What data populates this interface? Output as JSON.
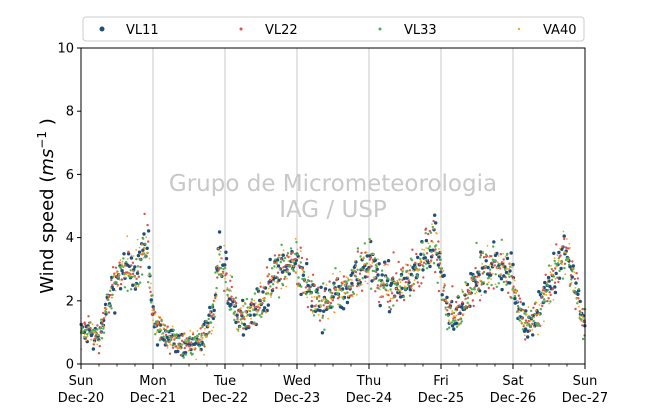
{
  "chart_data": {
    "type": "scatter",
    "title": "",
    "ylabel_main": "Wind speed (",
    "ylabel_unit": "ms",
    "ylabel_exp": "−1",
    "ylabel_close": " )",
    "ylim": [
      0,
      10
    ],
    "yticks": [
      "0",
      "2",
      "4",
      "6",
      "8",
      "10"
    ],
    "xlim": [
      "2020-12-20",
      "2020-12-27"
    ],
    "xticks": [
      {
        "day": "Sun",
        "date": "Dec-20"
      },
      {
        "day": "Mon",
        "date": "Dec-21"
      },
      {
        "day": "Tue",
        "date": "Dec-22"
      },
      {
        "day": "Wed",
        "date": "Dec-23"
      },
      {
        "day": "Thu",
        "date": "Dec-24"
      },
      {
        "day": "Fri",
        "date": "Dec-25"
      },
      {
        "day": "Sat",
        "date": "Dec-26"
      },
      {
        "day": "Sun",
        "date": "Dec-27"
      }
    ],
    "grid": "vertical",
    "legend_position": "top",
    "watermark_line1": "Grupo de Micrometeorologia",
    "watermark_line2": "IAG / USP",
    "profile_hours": [
      0,
      6,
      10,
      14,
      18,
      22,
      24,
      28,
      34,
      40,
      44,
      46,
      48,
      52,
      56,
      62,
      66,
      72,
      76,
      80,
      84,
      90,
      96,
      100,
      106,
      112,
      118,
      122,
      126,
      132,
      140,
      144,
      148,
      152,
      156,
      162,
      168
    ],
    "profile_speed": [
      1.0,
      0.8,
      2.3,
      3.0,
      2.8,
      3.8,
      1.4,
      0.9,
      0.6,
      0.7,
      1.5,
      3.6,
      2.8,
      1.6,
      1.5,
      2.3,
      3.0,
      3.1,
      2.4,
      1.8,
      2.2,
      2.6,
      3.2,
      2.6,
      2.5,
      2.9,
      4.0,
      1.8,
      1.5,
      2.8,
      3.3,
      2.6,
      1.1,
      1.5,
      2.6,
      3.5,
      1.2
    ],
    "series": [
      {
        "name": "VL11",
        "color": "#1f4e79"
      },
      {
        "name": "VL22",
        "color": "#d9534f"
      },
      {
        "name": "VL33",
        "color": "#4caf50"
      },
      {
        "name": "VA40",
        "color": "#f5a623"
      }
    ]
  }
}
